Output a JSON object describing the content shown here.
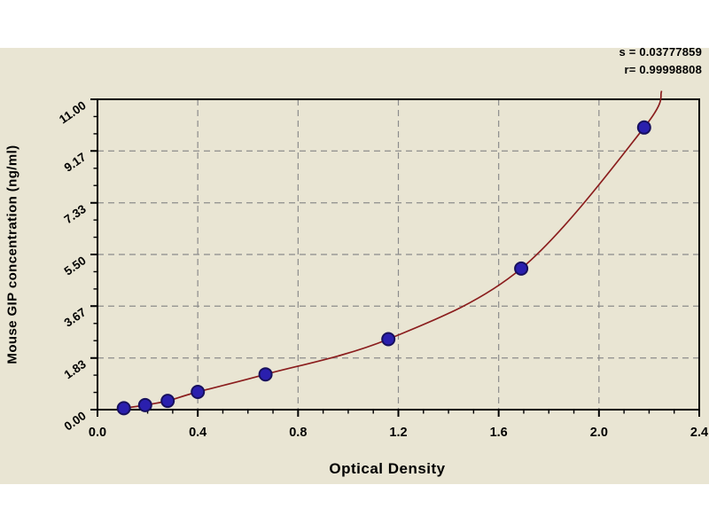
{
  "chart_data": {
    "type": "line",
    "title": "",
    "xlabel": "Optical Density",
    "ylabel": "Mouse GIP concentration (ng/ml)",
    "xlim": [
      0,
      2.4
    ],
    "ylim": [
      0,
      11
    ],
    "grid": true,
    "x_major_ticks": [
      0,
      0.4,
      0.8,
      1.2,
      1.6,
      2.0,
      2.4
    ],
    "x_tick_labels": [
      "0.0",
      "0.4",
      "0.8",
      "1.2",
      "1.6",
      "2.0",
      "2.4"
    ],
    "x_minor_step": 0.1,
    "y_major_ticks": [
      0,
      1.83,
      3.67,
      5.5,
      7.33,
      9.17,
      11
    ],
    "y_tick_labels": [
      "0.00",
      "1.83",
      "3.67",
      "5.50",
      "7.33",
      "9.17",
      "11.00"
    ],
    "y_minor_divisions": 3,
    "series": [
      {
        "name": "fitted standard curve",
        "type": "line",
        "color": "#8b1e1e",
        "x": [
          0.08,
          0.105,
          0.19,
          0.28,
          0.4,
          0.67,
          1.16,
          1.69,
          2.18,
          2.25
        ],
        "y": [
          0.02,
          0.05,
          0.16,
          0.31,
          0.63,
          1.25,
          2.5,
          5.0,
          10.0,
          11.3
        ]
      },
      {
        "name": "standard points",
        "type": "scatter",
        "color": "#2a1fae",
        "edge_color": "#17105e",
        "x": [
          0.105,
          0.19,
          0.28,
          0.4,
          0.67,
          1.16,
          1.69,
          2.18
        ],
        "y": [
          0.05,
          0.16,
          0.31,
          0.63,
          1.25,
          2.5,
          5.0,
          10.0
        ]
      }
    ],
    "annotations": [
      {
        "text": "s = 0.03777859"
      },
      {
        "text": "r= 0.99998808"
      }
    ],
    "legend": null,
    "colors": {
      "panel_bg": "#e9e5d3",
      "page_bg": "#ffffff",
      "frame": "#000000",
      "grid": "#8c8c8c",
      "curve": "#8b1e1e",
      "marker_fill": "#2a1fae",
      "marker_edge": "#17105e",
      "text": "#000000"
    }
  }
}
